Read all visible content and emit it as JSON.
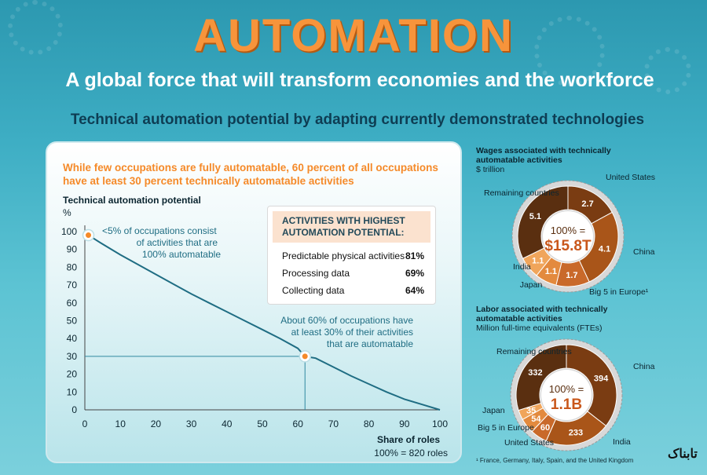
{
  "title": "AUTOMATION",
  "subtitle": "A global force that will transform economies and the workforce",
  "section_title": "Technical automation potential by adapting currently demonstrated technologies",
  "left_panel": {
    "headline_line1": "While few occupations are fully automatable, 60 percent of all occupations",
    "headline_line2": "have at least 30 percent technically automatable activities"
  },
  "activities_box": {
    "header_line1": "ACTIVITIES WITH HIGHEST",
    "header_line2": "AUTOMATION POTENTIAL:",
    "items": [
      {
        "label": "Predictable physical activities",
        "value": "81%"
      },
      {
        "label": "Processing data",
        "value": "69%"
      },
      {
        "label": "Collecting data",
        "value": "64%"
      }
    ]
  },
  "wages": {
    "title_line1": "Wages associated with technically",
    "title_line2": "automatable activities",
    "unit": "$ trillion",
    "center_line1": "100% =",
    "center_line2": "$15.8T"
  },
  "labor": {
    "title_line1": "Labor associated with technically",
    "title_line2": "automatable activities",
    "unit": "Million full-time equivalents (FTEs)",
    "center_line1": "100% =",
    "center_line2": "1.1B"
  },
  "footnote": "¹ France, Germany, Italy, Spain, and the United Kingdom",
  "watermark": "تابناک",
  "colors": {
    "orange": "#f58a29",
    "dark_brown": "#5a2f10",
    "teal_line": "#1f6d83",
    "background": "#3eaec4"
  },
  "chart_data": [
    {
      "type": "line",
      "title": "Technical automation potential",
      "ylabel": "%",
      "xlabel": "Share of roles",
      "xlabel_note": "100% = 820 roles",
      "xlim": [
        0,
        100
      ],
      "ylim": [
        0,
        100
      ],
      "xticks": [
        0,
        10,
        20,
        30,
        40,
        50,
        60,
        70,
        80,
        90,
        100
      ],
      "yticks": [
        0,
        10,
        20,
        30,
        40,
        50,
        60,
        70,
        80,
        90,
        100
      ],
      "grid": false,
      "series": [
        {
          "x": [
            0,
            1,
            5,
            10,
            15,
            20,
            25,
            30,
            35,
            40,
            45,
            50,
            55,
            60,
            62,
            65,
            70,
            75,
            80,
            85,
            90,
            95,
            100
          ],
          "y": [
            100,
            98,
            93,
            87,
            81.5,
            76,
            70.5,
            65,
            60,
            55,
            50,
            45,
            40,
            34.5,
            30,
            29,
            24,
            19,
            14.5,
            10,
            6,
            3,
            0
          ]
        }
      ],
      "highlight_points": [
        {
          "x": 1,
          "y": 98
        },
        {
          "x": 62,
          "y": 30
        }
      ],
      "annotations": [
        {
          "text_lines": [
            "<5% of occupations consist",
            "of activities that are",
            "100% automatable"
          ]
        },
        {
          "text_lines": [
            "About 60% of occupations have",
            "at least 30% of their activities",
            "that are automatable"
          ]
        }
      ]
    },
    {
      "type": "pie",
      "title": "Wages associated with technically automatable activities",
      "unit": "$ trillion",
      "total_label": "$15.8T",
      "categories": [
        "United States",
        "China",
        "Big 5 in Europe¹",
        "Japan",
        "India",
        "Remaining countries"
      ],
      "values": [
        2.7,
        4.1,
        1.7,
        1.1,
        1.1,
        5.1
      ],
      "value_labels": [
        "2.7",
        "4.1",
        "1.7",
        "1.1",
        "1.1",
        "5.1"
      ]
    },
    {
      "type": "pie",
      "title": "Labor associated with technically automatable activities",
      "unit": "Million full-time equivalents (FTEs)",
      "total_label": "1.1B",
      "categories": [
        "China",
        "India",
        "United States",
        "Big 5 in Europe",
        "Japan",
        "Remaining countries"
      ],
      "values": [
        394,
        233,
        60,
        54,
        35,
        332
      ],
      "value_labels": [
        "394",
        "233",
        "60",
        "54",
        "35",
        "332"
      ]
    }
  ]
}
